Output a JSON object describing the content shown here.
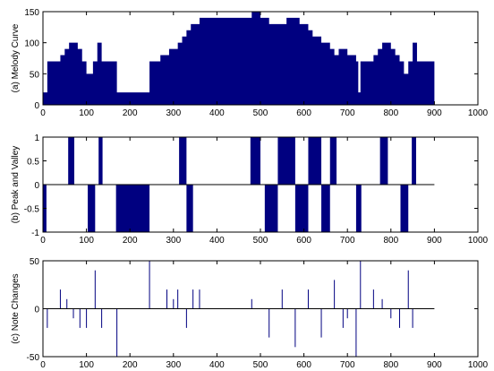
{
  "chart_data": [
    {
      "type": "area",
      "ylabel": "(a) Melody Curve",
      "xlim": [
        0,
        1000
      ],
      "ylim": [
        0,
        150
      ],
      "xticks": [
        0,
        100,
        200,
        300,
        400,
        500,
        600,
        700,
        800,
        900,
        1000
      ],
      "yticks": [
        0,
        50,
        100,
        150
      ],
      "color": "#000080",
      "points": [
        [
          0,
          20
        ],
        [
          10,
          70
        ],
        [
          40,
          80
        ],
        [
          50,
          90
        ],
        [
          60,
          100
        ],
        [
          80,
          90
        ],
        [
          90,
          70
        ],
        [
          100,
          50
        ],
        [
          115,
          70
        ],
        [
          125,
          100
        ],
        [
          135,
          70
        ],
        [
          170,
          20
        ],
        [
          245,
          70
        ],
        [
          270,
          80
        ],
        [
          290,
          90
        ],
        [
          310,
          100
        ],
        [
          320,
          110
        ],
        [
          330,
          120
        ],
        [
          340,
          130
        ],
        [
          360,
          140
        ],
        [
          480,
          150
        ],
        [
          500,
          140
        ],
        [
          520,
          130
        ],
        [
          560,
          140
        ],
        [
          590,
          130
        ],
        [
          610,
          120
        ],
        [
          620,
          110
        ],
        [
          640,
          100
        ],
        [
          660,
          90
        ],
        [
          670,
          80
        ],
        [
          680,
          90
        ],
        [
          700,
          80
        ],
        [
          720,
          70
        ],
        [
          725,
          20
        ],
        [
          730,
          70
        ],
        [
          760,
          80
        ],
        [
          770,
          90
        ],
        [
          780,
          100
        ],
        [
          800,
          90
        ],
        [
          810,
          80
        ],
        [
          820,
          70
        ],
        [
          830,
          50
        ],
        [
          840,
          70
        ],
        [
          850,
          100
        ],
        [
          860,
          70
        ],
        [
          900,
          70
        ]
      ]
    },
    {
      "type": "bar",
      "ylabel": "(b) Peak and Valley",
      "xlim": [
        0,
        1000
      ],
      "ylim": [
        -1,
        1
      ],
      "xticks": [
        0,
        100,
        200,
        300,
        400,
        500,
        600,
        700,
        800,
        900,
        1000
      ],
      "yticks": [
        -1,
        -0.5,
        0,
        0.5,
        1
      ],
      "color": "#000080",
      "intervals": [
        [
          0,
          8,
          -1
        ],
        [
          58,
          72,
          1
        ],
        [
          103,
          120,
          -1
        ],
        [
          128,
          137,
          1
        ],
        [
          168,
          245,
          -1
        ],
        [
          313,
          330,
          1
        ],
        [
          330,
          345,
          -1
        ],
        [
          477,
          500,
          1
        ],
        [
          510,
          540,
          -1
        ],
        [
          540,
          580,
          1
        ],
        [
          580,
          610,
          -1
        ],
        [
          610,
          640,
          1
        ],
        [
          640,
          660,
          -1
        ],
        [
          660,
          675,
          1
        ],
        [
          720,
          732,
          -1
        ],
        [
          775,
          793,
          1
        ],
        [
          822,
          840,
          -1
        ],
        [
          848,
          858,
          1
        ]
      ]
    },
    {
      "type": "bar",
      "ylabel": "(c) Note Changes",
      "xlim": [
        0,
        1000
      ],
      "ylim": [
        -50,
        50
      ],
      "xticks": [
        0,
        100,
        200,
        300,
        400,
        500,
        600,
        700,
        800,
        900,
        1000
      ],
      "yticks": [
        -50,
        0,
        50
      ],
      "color": "#000080",
      "x": [
        10,
        40,
        55,
        70,
        85,
        100,
        120,
        135,
        170,
        245,
        285,
        300,
        310,
        330,
        345,
        360,
        480,
        520,
        550,
        580,
        610,
        640,
        670,
        690,
        700,
        720,
        730,
        760,
        780,
        800,
        820,
        840,
        850
      ],
      "values": [
        -20,
        20,
        10,
        -10,
        -20,
        -20,
        40,
        -20,
        -50,
        50,
        20,
        10,
        20,
        -20,
        20,
        20,
        10,
        -30,
        20,
        -40,
        20,
        -30,
        30,
        -20,
        -10,
        -50,
        50,
        20,
        10,
        -10,
        -20,
        40,
        -20
      ]
    }
  ]
}
